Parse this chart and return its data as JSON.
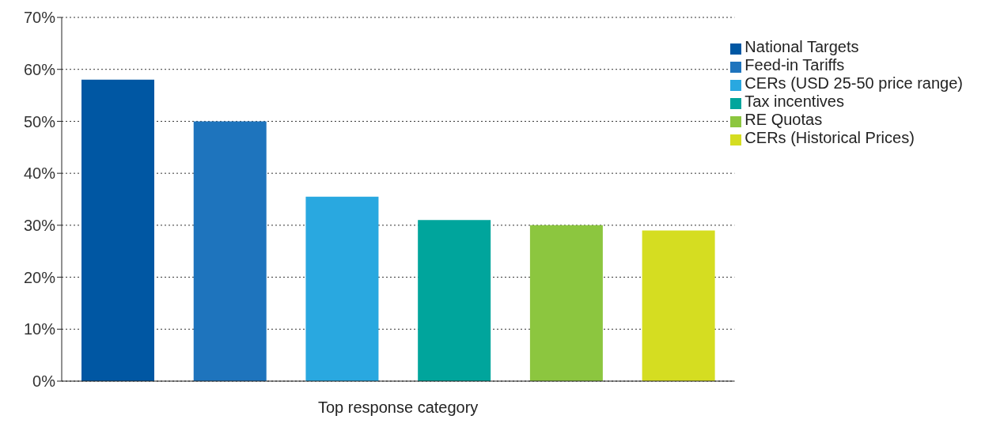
{
  "chart_data": {
    "type": "bar",
    "xlabel": "Top response category",
    "categories": [
      null,
      null,
      null,
      null,
      null,
      null
    ],
    "stacked": true,
    "series": [
      {
        "name": "National Targets",
        "color": "#0057a3",
        "values": [
          58,
          null,
          null,
          null,
          null,
          null
        ]
      },
      {
        "name": "Feed-in Tariffs",
        "color": "#1e74bd",
        "values": [
          null,
          50,
          null,
          null,
          null,
          null
        ]
      },
      {
        "name": "CERs (USD 25-50 price range)",
        "color": "#29a8e0",
        "values": [
          null,
          null,
          35.5,
          null,
          null,
          null
        ]
      },
      {
        "name": "Tax incentives",
        "color": "#00a59c",
        "values": [
          null,
          null,
          null,
          31,
          null,
          null
        ]
      },
      {
        "name": "RE Quotas",
        "color": "#8cc63f",
        "values": [
          null,
          null,
          null,
          null,
          30,
          null
        ]
      },
      {
        "name": "CERs (Historical Prices)",
        "color": "#d5dd21",
        "values": [
          null,
          null,
          null,
          null,
          null,
          29
        ]
      }
    ],
    "ylim": [
      0,
      70
    ],
    "yticks": [
      {
        "value": 0,
        "label": "0%"
      },
      {
        "value": 10,
        "label": "10%"
      },
      {
        "value": 20,
        "label": "20%"
      },
      {
        "value": 30,
        "label": "30%"
      },
      {
        "value": 40,
        "label": "40%"
      },
      {
        "value": 50,
        "label": "50%"
      },
      {
        "value": 60,
        "label": "60%"
      },
      {
        "value": 70,
        "label": "70%"
      }
    ],
    "grid": "y",
    "legend": "top right"
  }
}
